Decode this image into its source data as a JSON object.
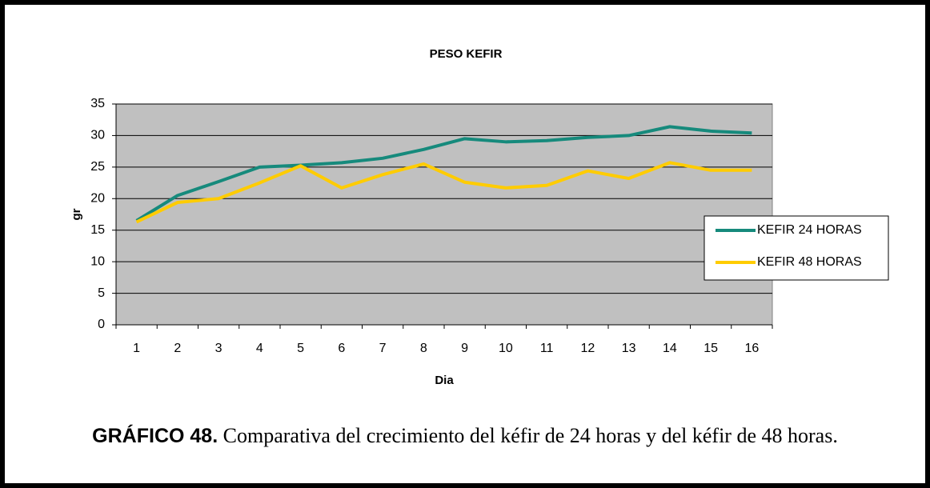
{
  "chart_data": {
    "type": "line",
    "title": "PESO KEFIR",
    "x_label": "Dia",
    "y_label": "gr",
    "categories": [
      "1",
      "2",
      "3",
      "4",
      "5",
      "6",
      "7",
      "8",
      "9",
      "10",
      "11",
      "12",
      "13",
      "14",
      "15",
      "16"
    ],
    "series": [
      {
        "name": "KEFIR 24 HORAS",
        "color": "#168a7c",
        "values": [
          16.5,
          20.5,
          22.7,
          25,
          25.3,
          25.7,
          26.4,
          27.8,
          29.5,
          29,
          29.2,
          29.7,
          30,
          31.4,
          30.7,
          30.4
        ]
      },
      {
        "name": "KEFIR 48 HORAS",
        "color": "#ffcc00",
        "values": [
          16.3,
          19.4,
          20,
          22.5,
          25.2,
          21.7,
          23.8,
          25.5,
          22.6,
          21.7,
          22.1,
          24.4,
          23.2,
          25.7,
          24.5,
          24.5
        ]
      }
    ],
    "ylim": [
      0,
      35
    ],
    "yticks": [
      0,
      5,
      10,
      15,
      20,
      25,
      30,
      35
    ],
    "grid": true,
    "legend": "right",
    "caption_label": "GRÁFICO 48.",
    "caption": "Comparativa del crecimiento del kéfir de 24 horas y del kéfir de 48 horas."
  }
}
